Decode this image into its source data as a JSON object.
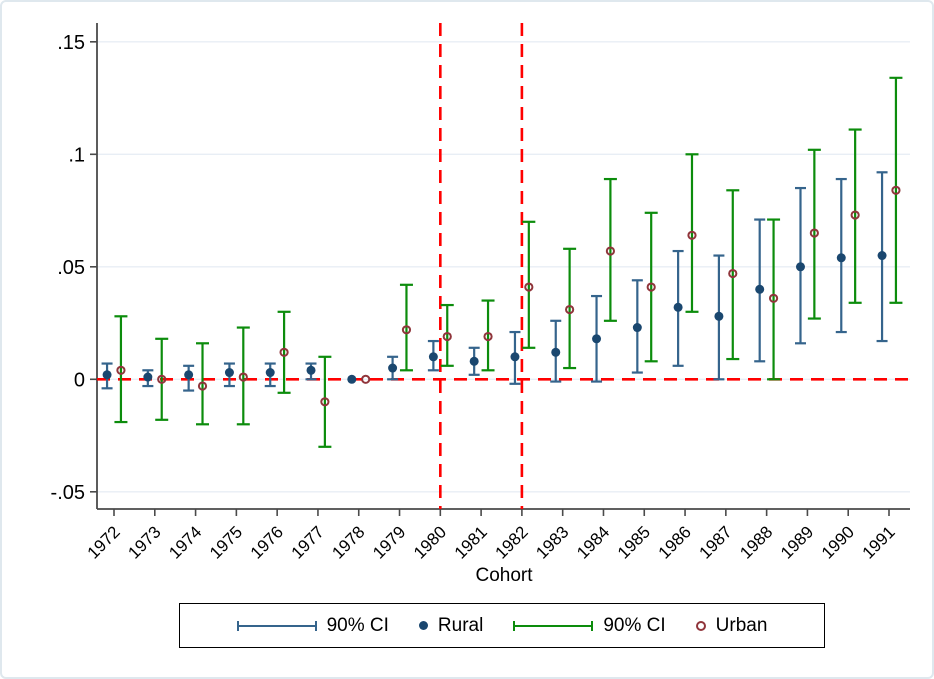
{
  "figure": {
    "background": "#ffffff",
    "border_color": "#dfe8ee",
    "plot_bg": "#ffffff",
    "grid_color": "#e8eef5",
    "axis_color": "#4a4a4a"
  },
  "legend": {
    "items": [
      {
        "label": "90% CI",
        "type": "ci",
        "color": "#35648c",
        "icon": "navy-ci-bar-icon"
      },
      {
        "label": "Rural",
        "type": "dot",
        "color": "#1a476f",
        "icon": "navy-dot-icon"
      },
      {
        "label": "90% CI",
        "type": "ci",
        "color": "#0c8c0c",
        "icon": "green-ci-bar-icon"
      },
      {
        "label": "Urban",
        "type": "ring",
        "color": "#90353b",
        "icon": "maroon-ring-icon"
      }
    ]
  },
  "chart_data": {
    "type": "scatter",
    "title": "",
    "xlabel": "Cohort",
    "ylabel": "",
    "x": [
      1972,
      1973,
      1974,
      1975,
      1976,
      1977,
      1978,
      1979,
      1980,
      1981,
      1982,
      1983,
      1984,
      1985,
      1986,
      1987,
      1988,
      1989,
      1990,
      1991
    ],
    "xtick_labels": [
      "1972",
      "1973",
      "1974",
      "1975",
      "1976",
      "1977",
      "1978",
      "1979",
      "1980",
      "1981",
      "1982",
      "1983",
      "1984",
      "1985",
      "1986",
      "1987",
      "1988",
      "1989",
      "1990",
      "1991"
    ],
    "yticks": [
      {
        "value": 0.15,
        "label": ".15"
      },
      {
        "value": 0.1,
        "label": ".1"
      },
      {
        "value": 0.05,
        "label": ".05"
      },
      {
        "value": 0,
        "label": "0"
      },
      {
        "value": -0.05,
        "label": "-.05"
      }
    ],
    "ylim": [
      -0.058,
      0.158
    ],
    "grid": true,
    "legend_position": "bottom",
    "series": [
      {
        "name": "Rural",
        "marker": "filled-circle",
        "marker_color": "#1a476f",
        "ci_color": "#35648c",
        "ci_label": "90% CI",
        "x_offset_years": -0.17,
        "values": [
          0.002,
          0.001,
          0.002,
          0.003,
          0.003,
          0.004,
          0.0,
          0.005,
          0.01,
          0.008,
          0.01,
          0.012,
          0.018,
          0.023,
          0.032,
          0.028,
          0.04,
          0.05,
          0.054,
          0.055
        ],
        "ci_low": [
          -0.004,
          -0.003,
          -0.005,
          -0.003,
          -0.003,
          0.0,
          0.0,
          0.0,
          0.004,
          0.002,
          -0.002,
          -0.001,
          -0.001,
          0.003,
          0.006,
          0.0,
          0.008,
          0.016,
          0.021,
          0.017
        ],
        "ci_high": [
          0.007,
          0.004,
          0.006,
          0.007,
          0.007,
          0.007,
          0.0,
          0.01,
          0.017,
          0.014,
          0.021,
          0.026,
          0.037,
          0.044,
          0.057,
          0.055,
          0.071,
          0.085,
          0.089,
          0.092
        ]
      },
      {
        "name": "Urban",
        "marker": "hollow-circle",
        "marker_color": "#90353b",
        "ci_color": "#0c8c0c",
        "ci_label": "90% CI",
        "x_offset_years": 0.17,
        "values": [
          0.004,
          0.0,
          -0.003,
          0.001,
          0.012,
          -0.01,
          0.0,
          0.022,
          0.019,
          0.019,
          0.041,
          0.031,
          0.057,
          0.041,
          0.064,
          0.047,
          0.036,
          0.065,
          0.073,
          0.084
        ],
        "ci_low": [
          -0.019,
          -0.018,
          -0.02,
          -0.02,
          -0.006,
          -0.03,
          0.0,
          0.004,
          0.006,
          0.004,
          0.014,
          0.005,
          0.026,
          0.008,
          0.03,
          0.009,
          0.0,
          0.027,
          0.034,
          0.034
        ],
        "ci_high": [
          0.028,
          0.018,
          0.016,
          0.023,
          0.03,
          0.01,
          0.0,
          0.042,
          0.033,
          0.035,
          0.07,
          0.058,
          0.089,
          0.074,
          0.1,
          0.084,
          0.071,
          0.102,
          0.111,
          0.134
        ]
      }
    ],
    "reference_lines": {
      "horizontal_y": 0,
      "vertical_x": [
        1980,
        1982
      ],
      "color": "#ff0000",
      "style": "dashed"
    }
  }
}
